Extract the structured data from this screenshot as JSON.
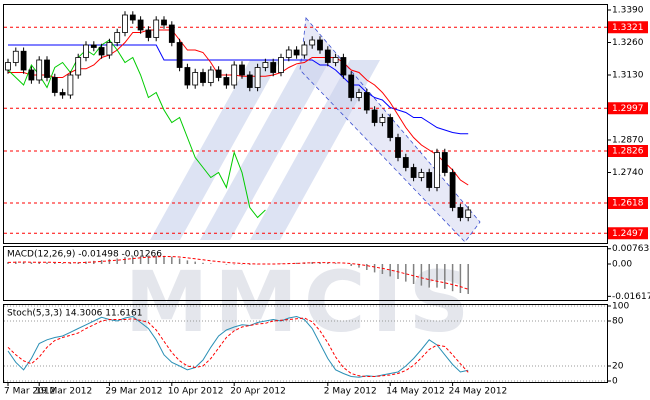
{
  "watermark": "MMCIS",
  "chart_data": [
    {
      "type": "candlestick",
      "categories": [
        "7 Mar 2012",
        null,
        null,
        null,
        "19 Mar 2012",
        null,
        null,
        null,
        null,
        null,
        null,
        null,
        null,
        "29 Mar 2012",
        null,
        null,
        null,
        null,
        null,
        null,
        null,
        "10 Apr 2012",
        null,
        null,
        null,
        null,
        null,
        null,
        null,
        "20 Apr 2012",
        null,
        null,
        null,
        null,
        null,
        null,
        null,
        null,
        null,
        null,
        null,
        "2 May 2012",
        null,
        null,
        null,
        null,
        null,
        null,
        null,
        "14 May 2012",
        null,
        null,
        null,
        null,
        null,
        null,
        null,
        "24 May 2012",
        null,
        null
      ],
      "open": [
        1.315,
        1.318,
        1.3225,
        1.315,
        1.311,
        1.319,
        1.312,
        1.306,
        1.305,
        1.313,
        1.32,
        1.325,
        1.324,
        1.321,
        1.326,
        1.33,
        1.337,
        1.335,
        1.331,
        1.328,
        1.335,
        1.333,
        1.326,
        1.316,
        1.309,
        1.314,
        1.31,
        1.315,
        1.312,
        1.309,
        1.317,
        1.313,
        1.308,
        1.316,
        1.318,
        1.314,
        1.32,
        1.323,
        1.321,
        1.325,
        1.327,
        1.323,
        1.318,
        1.32,
        1.313,
        1.304,
        1.306,
        1.299,
        1.294,
        1.296,
        1.288,
        1.28,
        1.276,
        1.272,
        1.274,
        1.268,
        1.282,
        1.274,
        1.26,
        1.256
      ],
      "high": [
        1.3195,
        1.324,
        1.324,
        1.3165,
        1.3205,
        1.3205,
        1.3135,
        1.3075,
        1.3145,
        1.3215,
        1.3265,
        1.3265,
        1.3255,
        1.3275,
        1.3315,
        1.3385,
        1.3385,
        1.3365,
        1.3325,
        1.3365,
        1.3365,
        1.3345,
        1.3275,
        1.3175,
        1.3155,
        1.3155,
        1.3165,
        1.3165,
        1.3135,
        1.3185,
        1.3185,
        1.3145,
        1.3175,
        1.3195,
        1.3195,
        1.3215,
        1.3245,
        1.3245,
        1.3265,
        1.3285,
        1.3285,
        1.3245,
        1.3215,
        1.3215,
        1.3145,
        1.3075,
        1.3075,
        1.3005,
        1.2975,
        1.2975,
        1.2895,
        1.2815,
        1.2775,
        1.2755,
        1.2755,
        1.2835,
        1.2835,
        1.2755,
        1.2615,
        1.2605
      ],
      "low": [
        1.3135,
        1.3165,
        1.3135,
        1.3095,
        1.3095,
        1.3105,
        1.3045,
        1.3035,
        1.3035,
        1.3115,
        1.3185,
        1.3225,
        1.3195,
        1.3195,
        1.3245,
        1.3285,
        1.3335,
        1.3295,
        1.3265,
        1.3265,
        1.3315,
        1.3245,
        1.3145,
        1.3075,
        1.3075,
        1.3085,
        1.3085,
        1.3105,
        1.3075,
        1.3075,
        1.3115,
        1.3065,
        1.3065,
        1.3145,
        1.3125,
        1.3125,
        1.3185,
        1.3195,
        1.3195,
        1.3235,
        1.3215,
        1.3165,
        1.3165,
        1.3115,
        1.3025,
        1.3025,
        1.2975,
        1.2925,
        1.2925,
        1.2865,
        1.2785,
        1.2745,
        1.2705,
        1.2705,
        1.2665,
        1.2665,
        1.2725,
        1.2585,
        1.2545,
        1.2545
      ],
      "close": [
        1.318,
        1.3225,
        1.315,
        1.311,
        1.319,
        1.312,
        1.306,
        1.305,
        1.313,
        1.32,
        1.325,
        1.324,
        1.321,
        1.326,
        1.33,
        1.337,
        1.335,
        1.331,
        1.328,
        1.335,
        1.333,
        1.326,
        1.316,
        1.309,
        1.314,
        1.31,
        1.315,
        1.312,
        1.309,
        1.317,
        1.313,
        1.308,
        1.316,
        1.318,
        1.314,
        1.32,
        1.323,
        1.321,
        1.325,
        1.327,
        1.323,
        1.318,
        1.32,
        1.313,
        1.304,
        1.306,
        1.299,
        1.294,
        1.296,
        1.288,
        1.28,
        1.276,
        1.272,
        1.274,
        1.268,
        1.282,
        1.274,
        1.26,
        1.256,
        1.259
      ],
      "up_color": "#ffffff",
      "down_color": "#000000",
      "lines": [
        {
          "color": "#0000ff",
          "values": [
            1.325,
            1.325,
            1.325,
            1.325,
            1.325,
            1.325,
            1.325,
            1.325,
            1.325,
            1.325,
            1.325,
            1.325,
            1.325,
            1.325,
            1.325,
            1.325,
            1.325,
            1.325,
            1.325,
            1.325,
            1.319,
            1.319,
            1.319,
            1.319,
            1.319,
            1.319,
            1.319,
            1.319,
            1.319,
            1.319,
            1.319,
            1.319,
            1.319,
            1.319,
            1.319,
            1.319,
            1.319,
            1.319,
            1.319,
            1.319,
            1.317,
            1.317,
            1.315,
            1.312,
            1.309,
            1.309,
            1.306,
            1.304,
            1.303,
            1.3,
            1.299,
            1.298,
            1.296,
            1.296,
            1.294,
            1.292,
            1.291,
            1.29,
            1.2895,
            1.2895
          ]
        },
        {
          "color": "#ff0000",
          "values": [
            1.314,
            1.314,
            1.314,
            1.313,
            1.313,
            1.313,
            1.312,
            1.312,
            1.314,
            1.3155,
            1.3155,
            1.317,
            1.32,
            1.321,
            1.323,
            1.326,
            1.33,
            1.33,
            1.331,
            1.331,
            1.331,
            1.331,
            1.327,
            1.323,
            1.323,
            1.322,
            1.318,
            1.313,
            1.313,
            1.313,
            1.3125,
            1.3125,
            1.3125,
            1.3125,
            1.313,
            1.314,
            1.316,
            1.3175,
            1.318,
            1.32,
            1.32,
            1.32,
            1.32,
            1.318,
            1.315,
            1.314,
            1.311,
            1.309,
            1.306,
            1.302,
            1.297,
            1.292,
            1.288,
            1.285,
            1.283,
            1.281,
            1.278,
            1.275,
            1.271,
            1.269
          ]
        },
        {
          "color": "#00cc00",
          "values": [
            1.315,
            1.312,
            1.309,
            1.317,
            1.313,
            1.308,
            1.316,
            1.318,
            1.314,
            1.32,
            1.323,
            1.321,
            1.325,
            1.327,
            1.323,
            1.318,
            1.32,
            1.313,
            1.304,
            1.306,
            1.299,
            1.294,
            1.296,
            1.288,
            1.28,
            1.276,
            1.272,
            1.274,
            1.268,
            1.282,
            1.274,
            1.26,
            1.256,
            1.259,
            null,
            null,
            null,
            null,
            null,
            null,
            null,
            null,
            null,
            null,
            null,
            null,
            null,
            null,
            null,
            null,
            null,
            null,
            null,
            null,
            null,
            null,
            null,
            null,
            null,
            null
          ]
        }
      ],
      "levels": {
        "color": "#ff0000",
        "values": [
          1.3321,
          1.2997,
          1.2826,
          1.2618,
          1.2497
        ]
      },
      "ylim": [
        1.2458,
        1.341
      ],
      "yticks": [
        {
          "value": 1.339,
          "label": "1.3390"
        },
        {
          "value": 1.326,
          "label": "1.3260"
        },
        {
          "value": 1.313,
          "label": "1.3130"
        },
        {
          "value": 1.287,
          "label": "1.2870"
        },
        {
          "value": 1.274,
          "label": "1.2740"
        }
      ]
    },
    {
      "type": "macd",
      "label": "MACD(12,26,9) -0.01498 -0.01266",
      "hist_color": "#808080",
      "signal_color": "#ff0000",
      "values": [
        0.001,
        0.0012,
        0.001,
        0.0008,
        0.0009,
        0.0008,
        0.0006,
        0.0004,
        0.0005,
        0.0008,
        0.0012,
        0.0016,
        0.002,
        0.0024,
        0.0028,
        0.0034,
        0.0038,
        0.004,
        0.004,
        0.0041,
        0.004,
        0.0036,
        0.0028,
        0.0018,
        0.0012,
        0.0006,
        0.0003,
        0.0,
        -0.0003,
        -0.0002,
        -0.0002,
        -0.0004,
        -0.0002,
        0.0,
        0.0,
        0.0002,
        0.0005,
        0.0006,
        0.0008,
        0.001,
        0.0009,
        0.0006,
        0.0004,
        0.0,
        -0.001,
        -0.0018,
        -0.003,
        -0.0042,
        -0.005,
        -0.0062,
        -0.0075,
        -0.0088,
        -0.01,
        -0.0108,
        -0.0118,
        -0.0118,
        -0.0124,
        -0.0136,
        -0.0145,
        -0.01498
      ],
      "signal": [
        0.0008,
        0.0009,
        0.001,
        0.0009,
        0.0009,
        0.0009,
        0.0008,
        0.0007,
        0.0006,
        0.0006,
        0.0008,
        0.001,
        0.0013,
        0.0016,
        0.0019,
        0.0023,
        0.0027,
        0.0031,
        0.0034,
        0.0036,
        0.0038,
        0.0037,
        0.0035,
        0.0031,
        0.0026,
        0.0021,
        0.0016,
        0.0012,
        0.0008,
        0.0005,
        0.0003,
        0.0001,
        0.0,
        0.0,
        0.0,
        0.0001,
        0.0002,
        0.0003,
        0.0005,
        0.0006,
        0.0007,
        0.0007,
        0.0006,
        0.0005,
        0.0002,
        -0.0002,
        -0.0008,
        -0.0015,
        -0.0022,
        -0.003,
        -0.0039,
        -0.0049,
        -0.0059,
        -0.0069,
        -0.0078,
        -0.0086,
        -0.0094,
        -0.0103,
        -0.0113,
        -0.01266
      ],
      "ylim": [
        -0.018,
        0.0085
      ],
      "yticks": [
        0.00763,
        {
          "value": 0,
          "label": "0.00"
        },
        -0.01617
      ]
    },
    {
      "type": "stochastic",
      "label": "Stoch(5,3,3) 14.3006 11.6161",
      "main_color": "#2a8fb5",
      "signal_color": "#ff0000",
      "values": [
        40,
        25,
        15,
        30,
        50,
        55,
        58,
        60,
        65,
        70,
        75,
        80,
        85,
        82,
        80,
        84,
        86,
        78,
        70,
        55,
        35,
        25,
        20,
        15,
        18,
        28,
        45,
        60,
        68,
        72,
        75,
        74,
        78,
        80,
        82,
        80,
        84,
        86,
        82,
        70,
        50,
        30,
        15,
        10,
        6,
        5,
        7,
        6,
        8,
        10,
        12,
        20,
        30,
        42,
        55,
        48,
        35,
        22,
        12,
        14.3006
      ],
      "signal": [
        45,
        35,
        27,
        23,
        32,
        45,
        54,
        58,
        61,
        64,
        70,
        75,
        80,
        82,
        82,
        82,
        83,
        81,
        78,
        68,
        53,
        38,
        27,
        20,
        18,
        20,
        30,
        44,
        58,
        67,
        72,
        74,
        76,
        77,
        80,
        81,
        82,
        83,
        84,
        79,
        67,
        51,
        32,
        18,
        10,
        7,
        6,
        6,
        7,
        8,
        10,
        14,
        21,
        31,
        42,
        48,
        46,
        35,
        23,
        11.6161
      ],
      "ylim": [
        0,
        100
      ],
      "yticks": [
        100,
        80,
        20,
        0
      ]
    }
  ]
}
